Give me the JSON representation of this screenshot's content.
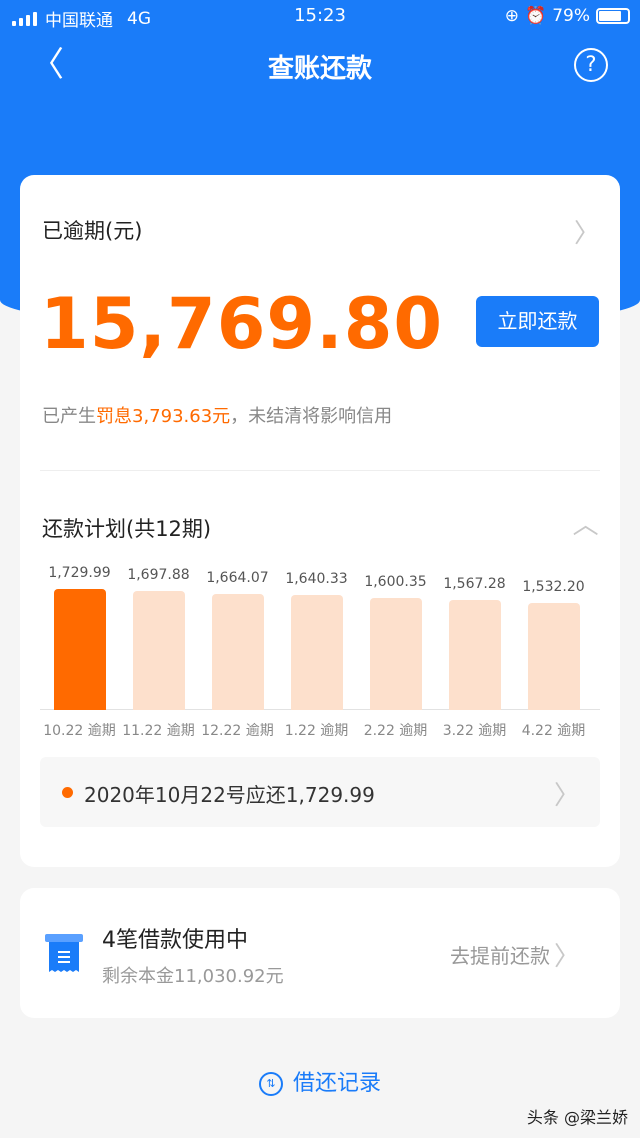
{
  "status_bar": {
    "carrier": "中国联通",
    "network": "4G",
    "time": "15:23",
    "battery": "79%",
    "battery_level": 0.79
  },
  "nav": {
    "back_icon": "chevron-left-icon",
    "title": "查账还款",
    "help_icon": "question-circle-icon"
  },
  "colors": {
    "brand_blue": "#1a7cf9",
    "accent_orange": "#ff6a00",
    "bar_future": "#fde0cc"
  },
  "overdue": {
    "label": "已逾期(元)",
    "amount": "15,769.80",
    "pay_button": "立即还款",
    "note_prefix": "已产生",
    "note_highlight": "罚息3,793.63元",
    "note_suffix": "，未结清将影响信用"
  },
  "schedule": {
    "title": "还款计划(共12期)",
    "bars": [
      {
        "value": "1,729.99",
        "date": "10.22 逾期",
        "amount": 1729.99,
        "current": true
      },
      {
        "value": "1,697.88",
        "date": "11.22 逾期",
        "amount": 1697.88
      },
      {
        "value": "1,664.07",
        "date": "12.22 逾期",
        "amount": 1664.07
      },
      {
        "value": "1,640.33",
        "date": "1.22 逾期",
        "amount": 1640.33
      },
      {
        "value": "1,600.35",
        "date": "2.22 逾期",
        "amount": 1600.35
      },
      {
        "value": "1,567.28",
        "date": "3.22 逾期",
        "amount": 1567.28
      },
      {
        "value": "1,532.20",
        "date": "4.22 逾期",
        "amount": 1532.2
      }
    ],
    "due_text": "2020年10月22号应还1,729.99"
  },
  "loans": {
    "title": "4笔借款使用中",
    "remaining": "剩余本金11,030.92元",
    "action": "去提前还款"
  },
  "records": {
    "label": "借还记录"
  },
  "watermark": "头条 @梁兰娇"
}
